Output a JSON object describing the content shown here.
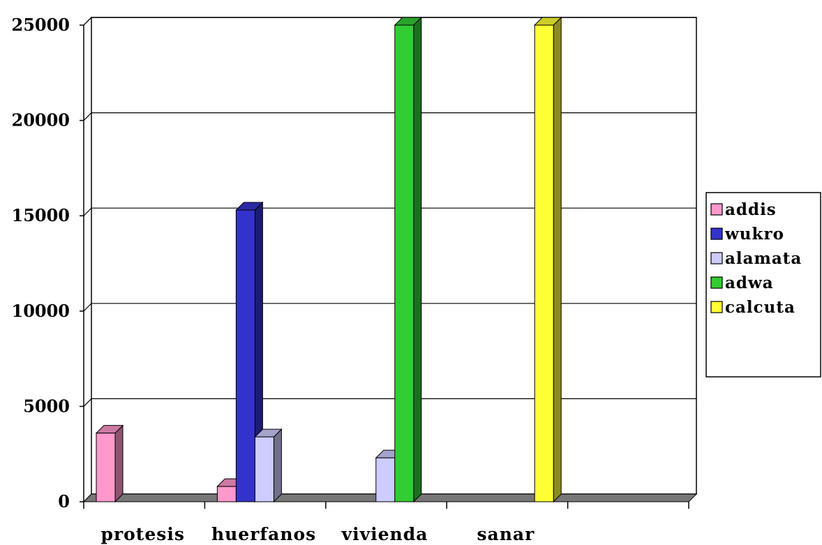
{
  "chart_data": {
    "type": "bar",
    "title": "",
    "xlabel": "",
    "ylabel": "",
    "categories": [
      "protesis",
      "huerfanos",
      "vivienda",
      "sanar",
      ""
    ],
    "ylim": [
      0,
      25000
    ],
    "yticks": [
      "0",
      "5000",
      "10000",
      "15000",
      "20000",
      "25000"
    ],
    "grid": true,
    "legend_position": "right",
    "three_d": true,
    "series": [
      {
        "name": "addis",
        "color": "#ff99cc",
        "values": [
          3600,
          800,
          0,
          0,
          0
        ]
      },
      {
        "name": "wukro",
        "color": "#3333cc",
        "values": [
          0,
          15300,
          0,
          0,
          0
        ]
      },
      {
        "name": "alamata",
        "color": "#ccccff",
        "values": [
          0,
          3400,
          2300,
          0,
          0
        ]
      },
      {
        "name": "adwa",
        "color": "#33cc33",
        "values": [
          0,
          0,
          25000,
          0,
          0
        ]
      },
      {
        "name": "calcuta",
        "color": "#ffff33",
        "values": [
          0,
          0,
          0,
          25000,
          0
        ]
      }
    ]
  }
}
